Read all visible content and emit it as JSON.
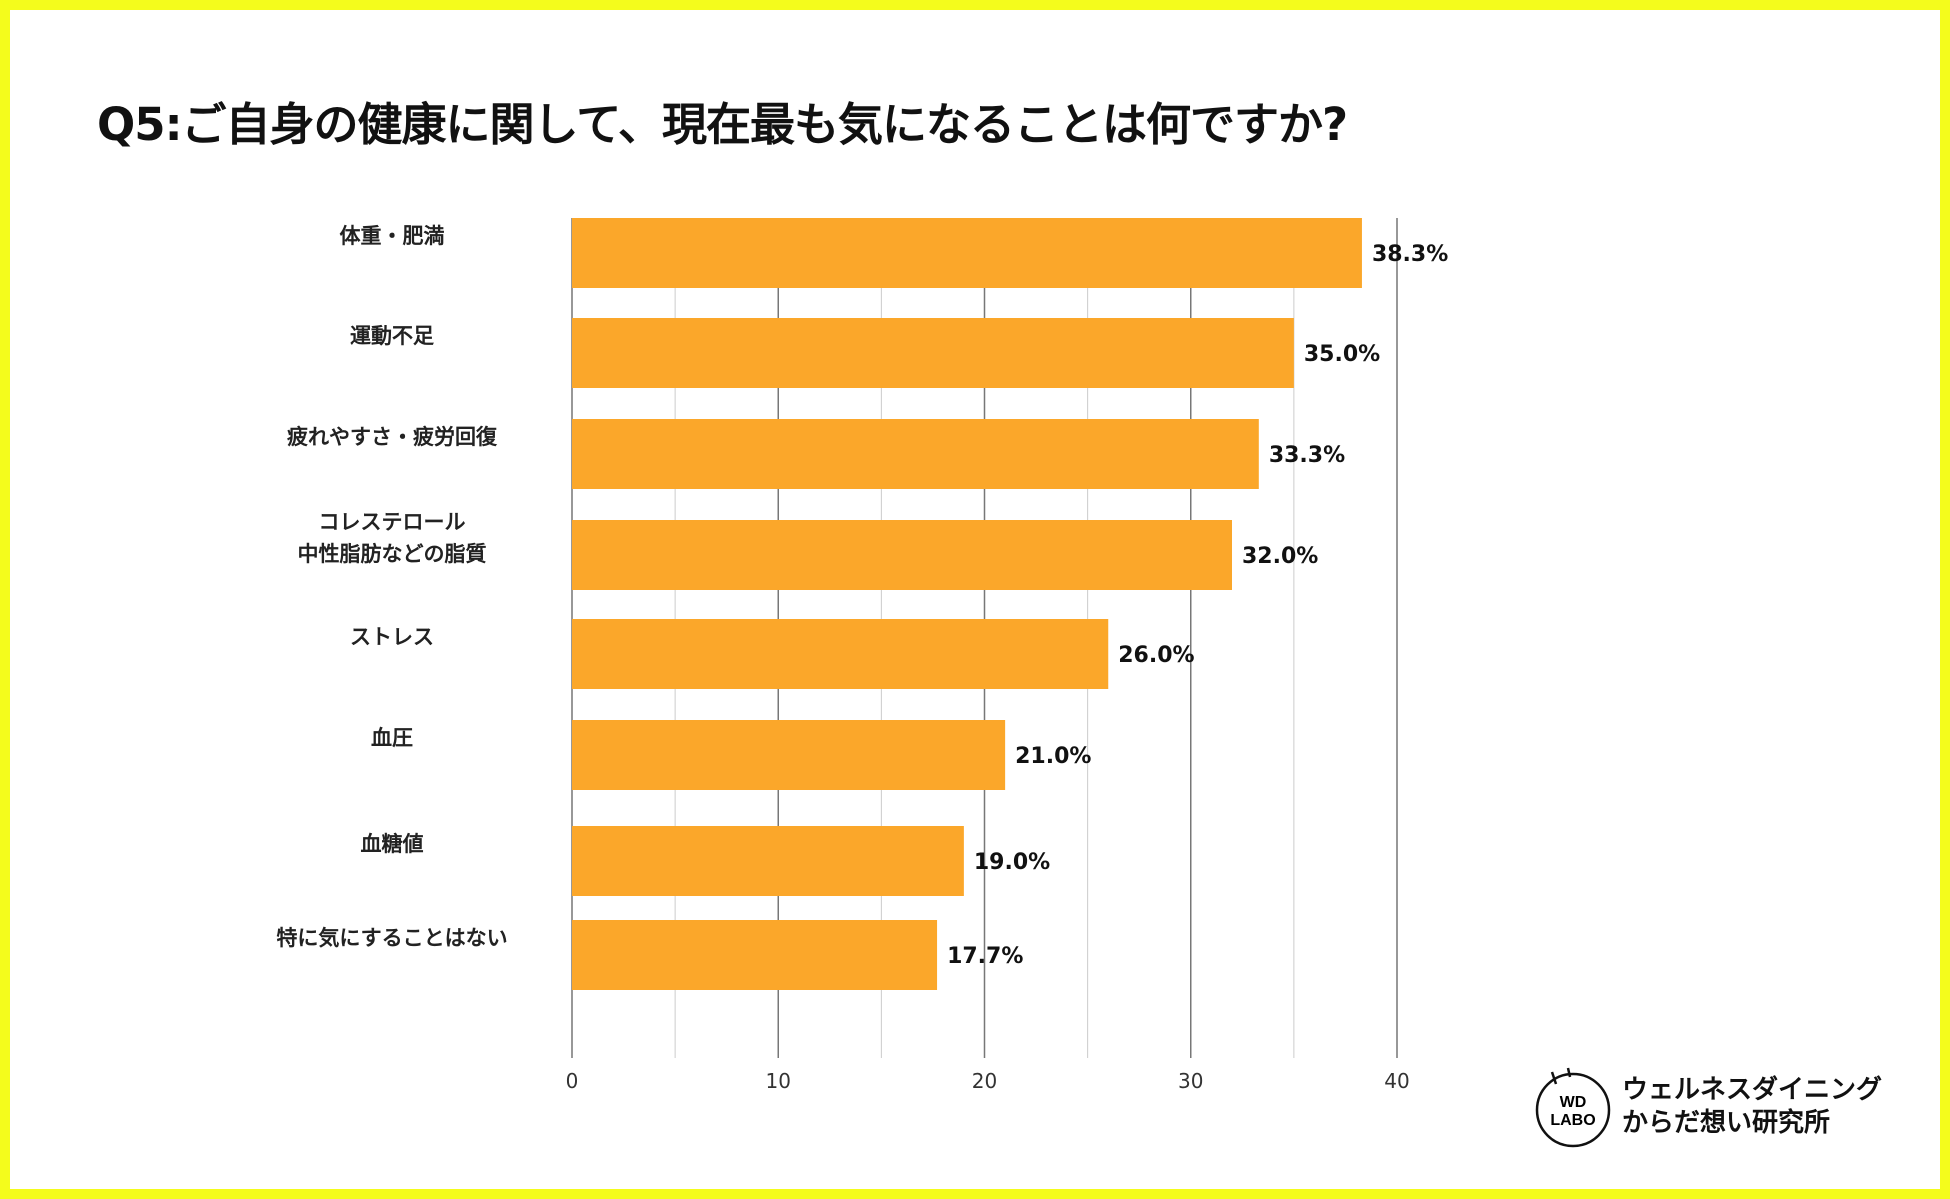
{
  "title": "Q5:ご自身の健康に関して、現在最も気になることは何ですか?",
  "colors": {
    "bar": "#fba72a",
    "border": "#f4fc1c"
  },
  "chart_data": {
    "type": "bar",
    "orientation": "horizontal",
    "categories": [
      "体重・肥満",
      "運動不足",
      "疲れやすさ・疲労回復",
      "コレステロール\n中性脂肪などの脂質",
      "ストレス",
      "血圧",
      "血糖値",
      "特に気にすることはない"
    ],
    "values": [
      38.3,
      35.0,
      33.3,
      32.0,
      26.0,
      21.0,
      19.0,
      17.7
    ],
    "data_labels": [
      "38.3%",
      "35.0%",
      "33.3%",
      "32.0%",
      "26.0%",
      "21.0%",
      "19.0%",
      "17.7%"
    ],
    "xlim": [
      0,
      40
    ],
    "ticks": [
      "0",
      "10",
      "20",
      "30",
      "40"
    ],
    "tick_values": [
      0,
      10,
      20,
      30,
      40
    ],
    "grid": true,
    "xlabel": "",
    "ylabel": ""
  },
  "logo": {
    "mark_line1": "WD",
    "mark_line2": "LABO",
    "line1": "ウェルネスダイニング",
    "line2": "からだ想い研究所"
  }
}
